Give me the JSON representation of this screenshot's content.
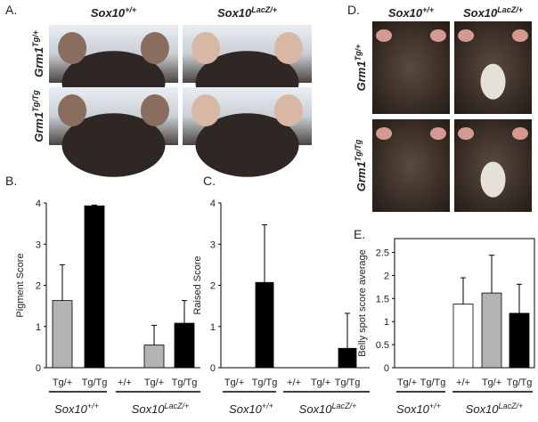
{
  "photo_panels": [
    {
      "label": "A.",
      "columns": [
        {
          "base": "Sox10",
          "sup": "+/+"
        },
        {
          "base": "Sox10",
          "sup": "LacZ/+"
        }
      ],
      "rows": [
        {
          "base": "Grm1",
          "sup": "Tg/+"
        },
        {
          "base": "Grm1",
          "sup": "Tg/Tg"
        }
      ]
    },
    {
      "label": "D.",
      "columns": [
        {
          "base": "Sox10",
          "sup": "+/+"
        },
        {
          "base": "Sox10",
          "sup": "LacZ/+"
        }
      ],
      "rows": [
        {
          "base": "Grm1",
          "sup": "Tg/+"
        },
        {
          "base": "Grm1",
          "sup": "Tg/Tg"
        }
      ]
    }
  ],
  "chart_data": [
    {
      "type": "bar",
      "panel_label": "B.",
      "y_label": "Pigment Score",
      "categories": [
        "Tg/+",
        "Tg/Tg",
        "+/+",
        "Tg/+",
        "Tg/Tg"
      ],
      "values": [
        1.63,
        3.93,
        0,
        0.55,
        1.08
      ],
      "errors": [
        0.87,
        0.02,
        null,
        0.48,
        0.55
      ],
      "colors": [
        "#b3b3b3",
        "#000000",
        "#b3b3b3",
        "#b3b3b3",
        "#000000"
      ],
      "ylim": [
        0,
        4
      ],
      "yticks": [
        0,
        1,
        2,
        3,
        4
      ],
      "groups": [
        {
          "base": "Sox10",
          "sup": "+/+"
        },
        {
          "base": "Sox10",
          "sup": "LacZ/+"
        }
      ]
    },
    {
      "type": "bar",
      "panel_label": "C.",
      "y_label": "Raised Score",
      "categories": [
        "Tg/+",
        "Tg/Tg",
        "+/+",
        "Tg/+",
        "Tg/Tg"
      ],
      "values": [
        0,
        2.07,
        0,
        0,
        0.47
      ],
      "errors": [
        null,
        1.4,
        null,
        null,
        0.85
      ],
      "colors": [
        "#000000",
        "#000000",
        "#000000",
        "#000000",
        "#000000"
      ],
      "ylim": [
        0,
        4
      ],
      "yticks": [
        0,
        1,
        2,
        3,
        4
      ],
      "groups": [
        {
          "base": "Sox10",
          "sup": "+/+"
        },
        {
          "base": "Sox10",
          "sup": "LacZ/+"
        }
      ]
    },
    {
      "type": "bar",
      "panel_label": "E.",
      "y_label": "Belly spot score average",
      "categories": [
        "Tg/+",
        "Tg/Tg",
        "+/+",
        "Tg/+",
        "Tg/Tg"
      ],
      "values": [
        0,
        0,
        1.38,
        1.62,
        1.18
      ],
      "errors": [
        null,
        null,
        0.57,
        0.82,
        0.63
      ],
      "colors": [
        "#ffffff",
        "#ffffff",
        "#ffffff",
        "#b3b3b3",
        "#000000"
      ],
      "ylim": [
        0,
        2.8
      ],
      "yticks": [
        0,
        0.5,
        1,
        1.5,
        2,
        2.5
      ],
      "frame": true,
      "groups": [
        {
          "base": "Sox10",
          "sup": "+/+"
        },
        {
          "base": "Sox10",
          "sup": "LacZ/+"
        }
      ]
    }
  ]
}
